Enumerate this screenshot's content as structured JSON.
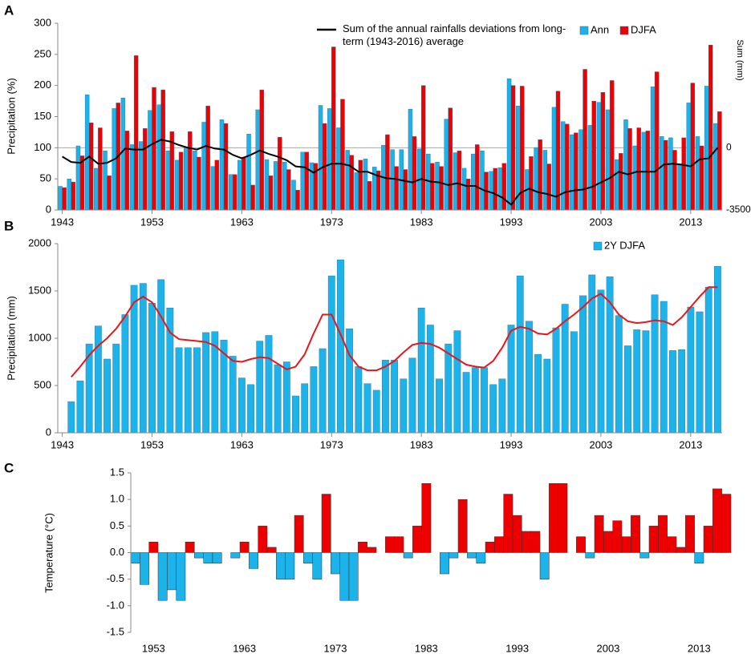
{
  "chart_data": [
    {
      "type": "bar",
      "panel_label": "A",
      "ylabel": "Precipitation (%)",
      "y2label": "Sum (mm)",
      "x": [
        1943,
        1944,
        1945,
        1946,
        1947,
        1948,
        1949,
        1950,
        1951,
        1952,
        1953,
        1954,
        1955,
        1956,
        1957,
        1958,
        1959,
        1960,
        1961,
        1962,
        1963,
        1964,
        1965,
        1966,
        1967,
        1968,
        1969,
        1970,
        1971,
        1972,
        1973,
        1974,
        1975,
        1976,
        1977,
        1978,
        1979,
        1980,
        1981,
        1982,
        1983,
        1984,
        1985,
        1986,
        1987,
        1988,
        1989,
        1990,
        1991,
        1992,
        1993,
        1994,
        1995,
        1996,
        1997,
        1998,
        1999,
        2000,
        2001,
        2002,
        2003,
        2004,
        2005,
        2006,
        2007,
        2008,
        2009,
        2010,
        2011,
        2012,
        2013,
        2014,
        2015,
        2016
      ],
      "series": [
        {
          "name": "Ann",
          "color": "#1cb2ea",
          "values": [
            38,
            50,
            103,
            185,
            67,
            95,
            163,
            180,
            105,
            110,
            160,
            169,
            95,
            80,
            100,
            95,
            141,
            70,
            145,
            57,
            80,
            122,
            161,
            81,
            78,
            77,
            48,
            93,
            76,
            168,
            163,
            132,
            96,
            60,
            82,
            69,
            104,
            97,
            97,
            162,
            98,
            90,
            77,
            146,
            92,
            67,
            90,
            95,
            62,
            68,
            211,
            167,
            65,
            100,
            96,
            165,
            142,
            121,
            129,
            136,
            173,
            161,
            81,
            145,
            103,
            125,
            198,
            118,
            116,
            72,
            172,
            118,
            199,
            139
          ]
        },
        {
          "name": "DJFA",
          "color": "#ee0000",
          "values": [
            36,
            45,
            87,
            140,
            132,
            55,
            172,
            127,
            248,
            131,
            197,
            193,
            126,
            93,
            126,
            85,
            167,
            80,
            139,
            57,
            85,
            40,
            193,
            55,
            117,
            65,
            32,
            93,
            75,
            139,
            262,
            178,
            88,
            80,
            46,
            63,
            121,
            70,
            65,
            118,
            200,
            75,
            70,
            164,
            95,
            50,
            105,
            61,
            67,
            75,
            200,
            199,
            86,
            113,
            74,
            191,
            138,
            124,
            226,
            175,
            189,
            208,
            91,
            131,
            132,
            127,
            222,
            112,
            96,
            116,
            204,
            103,
            265,
            158
          ]
        },
        {
          "name": "Sum of the annual rainfalls deviations from long-term (1943-2016) average",
          "type": "line",
          "axis": "y2",
          "color": "#000000",
          "values": [
            -500,
            -800,
            -850,
            -500,
            -900,
            -850,
            -600,
            -50,
            -100,
            -100,
            200,
            450,
            350,
            150,
            0,
            -100,
            100,
            -50,
            -100,
            -400,
            -600,
            -400,
            -150,
            -350,
            -500,
            -700,
            -1050,
            -1100,
            -1400,
            -1100,
            -900,
            -900,
            -1000,
            -1350,
            -1350,
            -1550,
            -1700,
            -1750,
            -1850,
            -1950,
            -1750,
            -1900,
            -1950,
            -2100,
            -2000,
            -2150,
            -2150,
            -2400,
            -2550,
            -2800,
            -3200,
            -2550,
            -2300,
            -2500,
            -2600,
            -2750,
            -2500,
            -2400,
            -2350,
            -2200,
            -1950,
            -1700,
            -1350,
            -1500,
            -1350,
            -1350,
            -1350,
            -950,
            -900,
            -950,
            -1050,
            -650,
            -600,
            0
          ]
        }
      ],
      "xlim": [
        1942.5,
        2016.5
      ],
      "xticks": [
        1943,
        1953,
        1963,
        1973,
        1983,
        1993,
        2003,
        2013
      ],
      "ylim": [
        0,
        300
      ],
      "yticks": [
        0,
        50,
        100,
        150,
        200,
        250,
        300
      ],
      "y2lim": [
        -3500,
        7000
      ],
      "y2ticks": [
        -3500,
        0
      ],
      "y2grid": true
    },
    {
      "type": "bar",
      "panel_label": "B",
      "ylabel": "Precipitation (mm)",
      "x": [
        1944,
        1945,
        1946,
        1947,
        1948,
        1949,
        1950,
        1951,
        1952,
        1953,
        1954,
        1955,
        1956,
        1957,
        1958,
        1959,
        1960,
        1961,
        1962,
        1963,
        1964,
        1965,
        1966,
        1967,
        1968,
        1969,
        1970,
        1971,
        1972,
        1973,
        1974,
        1975,
        1976,
        1977,
        1978,
        1979,
        1980,
        1981,
        1982,
        1983,
        1984,
        1985,
        1986,
        1987,
        1988,
        1989,
        1990,
        1991,
        1992,
        1993,
        1994,
        1995,
        1996,
        1997,
        1998,
        1999,
        2000,
        2001,
        2002,
        2003,
        2004,
        2005,
        2006,
        2007,
        2008,
        2009,
        2010,
        2011,
        2012,
        2013,
        2014,
        2015,
        2016
      ],
      "series": [
        {
          "name": "2Y DJFA",
          "color": "#1cb2ea",
          "values": [
            330,
            550,
            940,
            1130,
            780,
            940,
            1250,
            1560,
            1580,
            1370,
            1620,
            1320,
            900,
            900,
            900,
            1060,
            1070,
            980,
            810,
            580,
            510,
            970,
            1030,
            720,
            750,
            390,
            520,
            700,
            890,
            1660,
            1830,
            1100,
            700,
            520,
            450,
            770,
            770,
            570,
            790,
            1320,
            1140,
            570,
            940,
            1080,
            640,
            690,
            690,
            510,
            570,
            1140,
            1660,
            1180,
            830,
            780,
            1110,
            1360,
            1070,
            1450,
            1670,
            1510,
            1650,
            1240,
            920,
            1090,
            1080,
            1460,
            1390,
            870,
            880,
            1330,
            1280,
            1540,
            1760
          ]
        },
        {
          "type": "line",
          "color": "#e8161b",
          "values": [
            590,
            700,
            820,
            920,
            1000,
            1100,
            1230,
            1380,
            1440,
            1380,
            1230,
            1060,
            990,
            980,
            970,
            960,
            920,
            840,
            760,
            750,
            780,
            800,
            790,
            730,
            670,
            700,
            830,
            1050,
            1250,
            1250,
            1040,
            820,
            700,
            660,
            660,
            700,
            760,
            850,
            930,
            950,
            940,
            900,
            840,
            780,
            720,
            700,
            690,
            760,
            900,
            1080,
            1120,
            1100,
            1050,
            1040,
            1100,
            1180,
            1250,
            1330,
            1420,
            1470,
            1380,
            1250,
            1180,
            1160,
            1170,
            1190,
            1180,
            1140,
            1220,
            1330,
            1440,
            1540,
            1540
          ]
        }
      ],
      "xlim": [
        1942.5,
        2016.5
      ],
      "xticks": [
        1943,
        1953,
        1963,
        1973,
        1983,
        1993,
        2003,
        2013
      ],
      "ylim": [
        0,
        2000
      ],
      "yticks": [
        0,
        500,
        1000,
        1500,
        2000
      ]
    },
    {
      "type": "bar",
      "panel_label": "C",
      "ylabel": "Temperature (°C)",
      "x": [
        1951,
        1952,
        1953,
        1954,
        1955,
        1956,
        1957,
        1958,
        1959,
        1960,
        1961,
        1962,
        1963,
        1964,
        1965,
        1966,
        1967,
        1968,
        1969,
        1970,
        1971,
        1972,
        1973,
        1974,
        1975,
        1976,
        1977,
        1978,
        1979,
        1980,
        1981,
        1982,
        1983,
        1984,
        1985,
        1986,
        1987,
        1988,
        1989,
        1990,
        1991,
        1992,
        1993,
        1994,
        1995,
        1996,
        1997,
        1998,
        1999,
        2000,
        2001,
        2002,
        2003,
        2004,
        2005,
        2006,
        2007,
        2008,
        2009,
        2010,
        2011,
        2012,
        2013,
        2014,
        2015,
        2016
      ],
      "values": [
        -0.2,
        -0.6,
        0.2,
        -0.9,
        -0.7,
        -0.9,
        0.2,
        -0.1,
        -0.2,
        -0.2,
        0,
        -0.1,
        0.2,
        -0.3,
        0.5,
        0.1,
        -0.5,
        -0.5,
        0.7,
        -0.2,
        -0.5,
        1.1,
        -0.4,
        -0.9,
        -0.9,
        0.2,
        0.1,
        0,
        0.3,
        0.3,
        -0.1,
        0.5,
        1.3,
        0,
        -0.4,
        -0.1,
        1.0,
        -0.1,
        -0.2,
        0.2,
        0.3,
        1.1,
        0.7,
        0.4,
        0.4,
        -0.5,
        1.3,
        1.3,
        0,
        0.3,
        -0.1,
        0.7,
        0.4,
        0.6,
        0.3,
        0.7,
        -0.1,
        0.5,
        0.7,
        0.3,
        0.1,
        0.7,
        -0.2,
        0.5,
        1.2,
        1.1
      ],
      "positive_color": "#ee0000",
      "negative_color": "#1cb2ea",
      "xlim": [
        1950.5,
        2016.5
      ],
      "xticks": [
        1953,
        1963,
        1973,
        1983,
        1993,
        2003,
        2013
      ],
      "ylim": [
        -1.5,
        1.5
      ],
      "yticks": [
        -1.5,
        {
          "value": -1,
          "label": "-1.0"
        },
        -0.5,
        {
          "value": 0,
          "label": "0.0"
        },
        0.5,
        {
          "value": 1,
          "label": "1.0"
        },
        1.5
      ]
    }
  ]
}
